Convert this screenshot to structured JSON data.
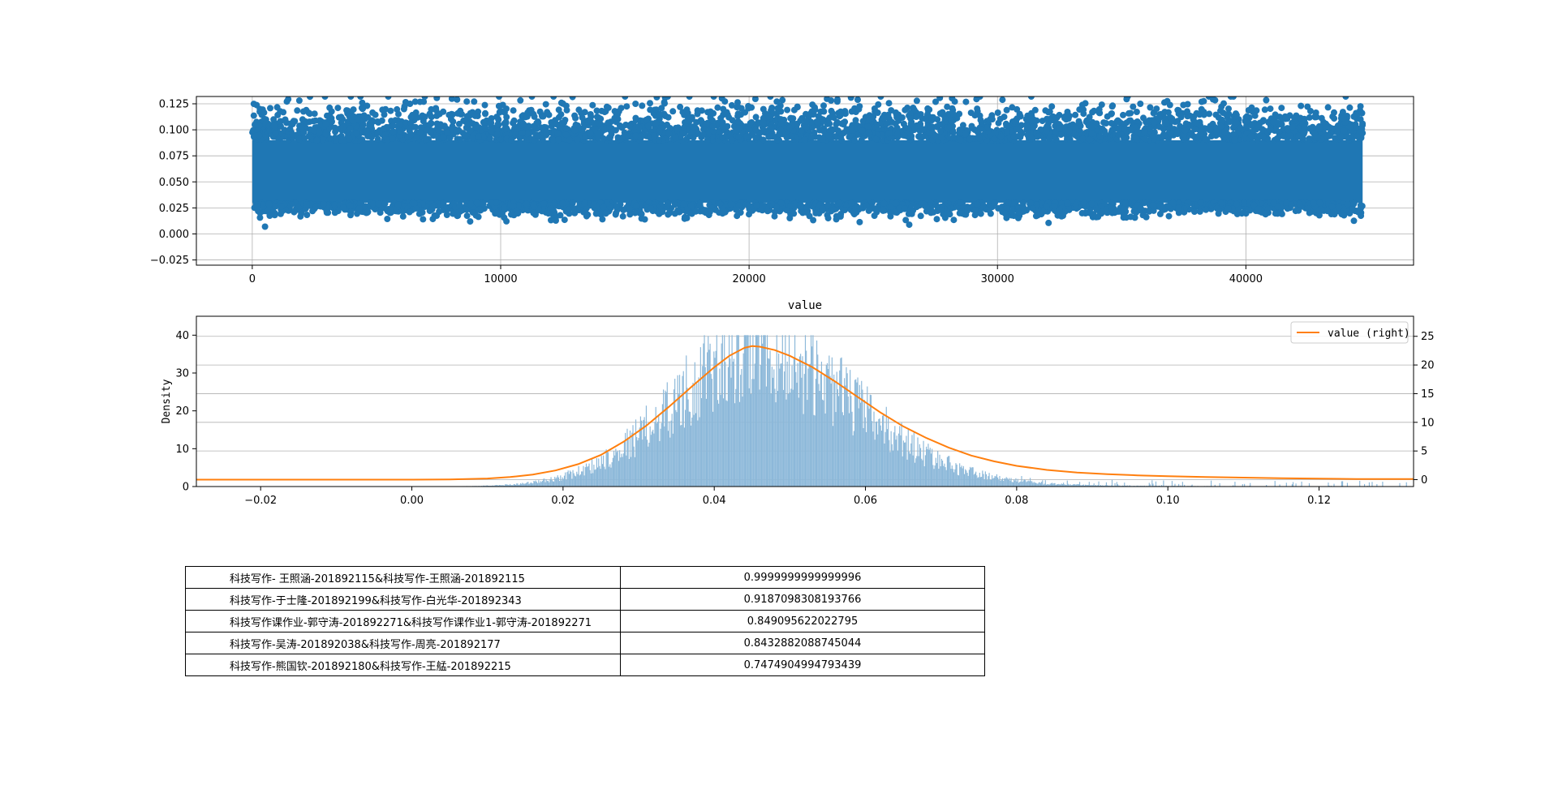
{
  "chart_data": [
    {
      "type": "scatter",
      "title": "",
      "xlabel": "",
      "ylabel": "",
      "xlim": [
        -2250,
        46750
      ],
      "ylim": [
        -0.03,
        0.132
      ],
      "x_ticks": [
        0,
        10000,
        20000,
        30000,
        40000
      ],
      "x_tick_labels": [
        "0",
        "10000",
        "20000",
        "30000",
        "40000"
      ],
      "y_ticks": [
        -0.025,
        0.0,
        0.025,
        0.05,
        0.075,
        0.1,
        0.125
      ],
      "y_tick_labels": [
        "−0.025",
        "0.000",
        "0.025",
        "0.050",
        "0.075",
        "0.100",
        "0.125"
      ],
      "grid": true,
      "point_color": "#1f77b4",
      "series": [
        {
          "x_range": [
            0,
            44700
          ],
          "point_count": 44700,
          "y_core_range": [
            0.03,
            0.09
          ],
          "y_mean": 0.05,
          "y_observed_min": 0.007,
          "y_observed_max": 0.132
        }
      ]
    },
    {
      "type": "bar",
      "title": "value",
      "xlabel": "",
      "ylabel": "Density",
      "xlim": [
        -0.0285,
        0.1325
      ],
      "ylim": [
        0,
        45
      ],
      "x_ticks": [
        -0.02,
        0.0,
        0.02,
        0.04,
        0.06,
        0.08,
        0.1,
        0.12
      ],
      "x_tick_labels": [
        "−0.02",
        "0.00",
        "0.02",
        "0.04",
        "0.06",
        "0.08",
        "0.10",
        "0.12"
      ],
      "y_ticks": [
        0,
        10,
        20,
        30,
        40
      ],
      "y_tick_labels": [
        "0",
        "10",
        "20",
        "30",
        "40"
      ],
      "right_axis": {
        "ylim": [
          -1.2,
          28.5
        ],
        "y_ticks": [
          0,
          5,
          10,
          15,
          20,
          25
        ],
        "y_tick_labels": [
          "0",
          "5",
          "10",
          "15",
          "20",
          "25"
        ]
      },
      "grid": true,
      "legend": {
        "position": "top-right",
        "entries": [
          "value (right)"
        ]
      },
      "series": [
        {
          "kind": "histogram",
          "color": "#8cb8d9",
          "bin_range": [
            0.006,
            0.132
          ],
          "bins": 1000,
          "peak_x": 0.045,
          "peak_density": 40,
          "mean": 0.046,
          "std": 0.012,
          "right_tail": true
        },
        {
          "name": "value (right)",
          "kind": "line",
          "axis": "right",
          "color": "#ff7f0e",
          "x": [
            -0.0285,
            0.0,
            0.005,
            0.01,
            0.013,
            0.016,
            0.019,
            0.022,
            0.025,
            0.028,
            0.031,
            0.034,
            0.037,
            0.04,
            0.042,
            0.044,
            0.045,
            0.046,
            0.048,
            0.05,
            0.053,
            0.056,
            0.059,
            0.062,
            0.065,
            0.068,
            0.071,
            0.074,
            0.077,
            0.08,
            0.084,
            0.088,
            0.092,
            0.096,
            0.1,
            0.105,
            0.11,
            0.115,
            0.12,
            0.125,
            0.1325
          ],
          "y": [
            0.0,
            0.0,
            0.05,
            0.2,
            0.45,
            0.9,
            1.6,
            2.7,
            4.3,
            6.6,
            9.4,
            12.7,
            16.2,
            19.6,
            21.6,
            23.0,
            23.3,
            23.2,
            22.6,
            21.6,
            19.6,
            17.1,
            14.4,
            11.7,
            9.3,
            7.3,
            5.6,
            4.2,
            3.2,
            2.4,
            1.7,
            1.25,
            0.95,
            0.75,
            0.6,
            0.45,
            0.35,
            0.25,
            0.18,
            0.12,
            0.1
          ]
        }
      ]
    }
  ],
  "table": {
    "rows": [
      {
        "name": "科技写作- 王照涵-201892115&科技写作-王照涵-201892115",
        "score": "0.9999999999999996"
      },
      {
        "name": "科技写作-于士隆-201892199&科技写作-白光华-201892343",
        "score": "0.9187098308193766"
      },
      {
        "name": "科技写作课作业-郭守涛-201892271&科技写作课作业1-郭守涛-201892271",
        "score": "0.849095622022795"
      },
      {
        "name": "科技写作-吴涛-201892038&科技写作-周亮-201892177",
        "score": "0.8432882088745044"
      },
      {
        "name": "科技写作-熊国钦-201892180&科技写作-王艋-201892215",
        "score": "0.7474904994793439"
      }
    ]
  }
}
